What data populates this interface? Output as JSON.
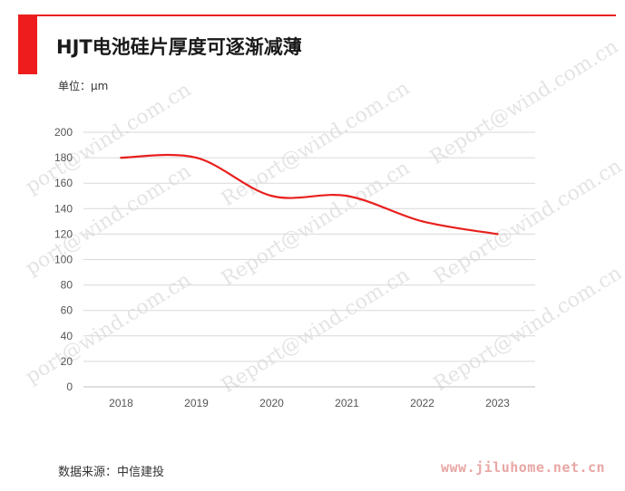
{
  "header": {
    "title": "HJT电池硅片厚度可逐渐减薄",
    "unit": "单位：μm"
  },
  "footer": {
    "source": "数据来源：中信建投",
    "site": "www.jiluhome.net.cn"
  },
  "watermark": {
    "text_a": "Report@wind.com.cn",
    "text_b": "port@wind.com.cn"
  },
  "colors": {
    "accent": "#ee1c1c",
    "line": "#e8201d",
    "grid": "#d9d9d9"
  },
  "chart_data": {
    "type": "line",
    "title": "",
    "xlabel": "",
    "ylabel": "",
    "x": [
      "2018",
      "2019",
      "2020",
      "2021",
      "2022",
      "2023"
    ],
    "series": [
      {
        "values": [
          180,
          180,
          150,
          150,
          130,
          120
        ]
      }
    ],
    "ylim": [
      0,
      200
    ],
    "yticks": [
      0,
      20,
      40,
      60,
      80,
      100,
      120,
      140,
      160,
      180,
      200
    ],
    "grid": true,
    "smooth": true
  }
}
